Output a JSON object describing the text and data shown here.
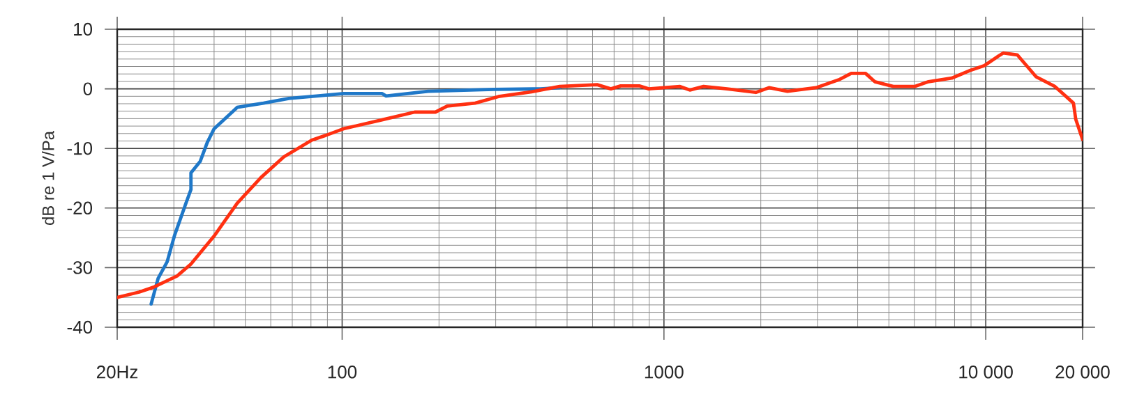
{
  "chart_data": {
    "type": "line",
    "ylabel": "dB re 1 V/Pa",
    "log": "x",
    "grid": true,
    "xlim": [
      20,
      20000
    ],
    "ylim": [
      -40,
      10
    ],
    "xticks": [
      {
        "value": 20,
        "label": "20Hz"
      },
      100,
      1000,
      {
        "value": 10000,
        "label": "10 000"
      },
      {
        "value": 20000,
        "label": "20 000"
      }
    ],
    "yticks": [
      -40,
      -30,
      -20,
      -10,
      0,
      10
    ],
    "series": [
      {
        "color": "#1f78c8",
        "x": [
          25.5,
          26.8,
          28.6,
          30.1,
          32.7,
          33.9,
          33.9,
          36.2,
          38.1,
          40,
          47.2,
          57,
          68.3,
          83.4,
          101,
          133,
          137,
          185,
          296,
          413,
          474
        ],
        "values": [
          -36.1,
          -31.8,
          -29,
          -24.7,
          -19.2,
          -16.9,
          -14.1,
          -12.2,
          -9,
          -6.7,
          -3.1,
          -2.4,
          -1.6,
          -1.2,
          -0.8,
          -0.8,
          -1.2,
          -0.4,
          -0.1,
          0,
          0.2
        ]
      },
      {
        "color": "#ff3011",
        "x": [
          20,
          23.4,
          25.9,
          30.7,
          33.9,
          40,
          47.2,
          55.9,
          65.9,
          80.5,
          89,
          101,
          133,
          168,
          195,
          212,
          259,
          306,
          388,
          474,
          620,
          684,
          734,
          838,
          897,
          1122,
          1203,
          1328,
          1570,
          1930,
          2120,
          2420,
          2970,
          3520,
          3820,
          4230,
          4520,
          5160,
          6010,
          6640,
          7840,
          8960,
          9900,
          10950,
          11330,
          12530,
          14350,
          16400,
          18730,
          19040,
          20000
        ],
        "values": [
          -35,
          -34.1,
          -33.3,
          -31.4,
          -29.4,
          -24.7,
          -19.2,
          -14.9,
          -11.4,
          -8.6,
          -7.8,
          -6.7,
          -5.2,
          -3.9,
          -3.9,
          -2.9,
          -2.4,
          -1.3,
          -0.5,
          0.4,
          0.7,
          0,
          0.5,
          0.5,
          0,
          0.4,
          -0.2,
          0.4,
          0,
          -0.6,
          0.2,
          -0.4,
          0.2,
          1.6,
          2.6,
          2.6,
          1.2,
          0.4,
          0.4,
          1.2,
          1.8,
          3.1,
          3.9,
          5.5,
          6,
          5.7,
          2,
          0.4,
          -2.4,
          -5.1,
          -8.5
        ]
      }
    ]
  }
}
